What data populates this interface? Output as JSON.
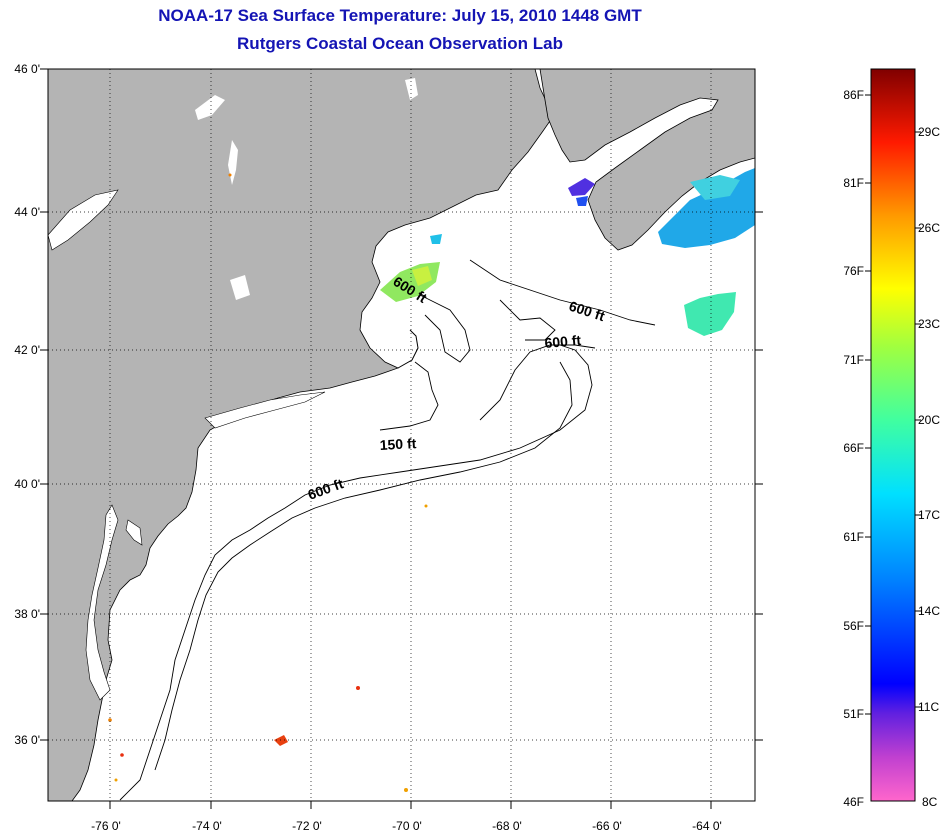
{
  "header": {
    "title_line1": "NOAA-17 Sea Surface Temperature:  July 15, 2010 1448 GMT",
    "title_line2": "Rutgers Coastal Ocean Observation Lab"
  },
  "map": {
    "lon_range": [
      -77,
      -63
    ],
    "lat_range": [
      35,
      46
    ],
    "lon_ticks": [
      {
        "value": -76,
        "label": "-76 0'"
      },
      {
        "value": -74,
        "label": "-74 0'"
      },
      {
        "value": -72,
        "label": "-72 0'"
      },
      {
        "value": -70,
        "label": "-70 0'"
      },
      {
        "value": -68,
        "label": "-68 0'"
      },
      {
        "value": -66,
        "label": "-66 0'"
      },
      {
        "value": -64,
        "label": "-64 0'"
      }
    ],
    "lat_ticks": [
      {
        "value": 46,
        "label": "46 0'"
      },
      {
        "value": 44,
        "label": "44 0'"
      },
      {
        "value": 42,
        "label": "42 0'"
      },
      {
        "value": 40,
        "label": "40 0'"
      },
      {
        "value": 38,
        "label": "38 0'"
      },
      {
        "value": 36,
        "label": "36 0'"
      }
    ],
    "depth_labels": [
      "600 ft",
      "600 ft",
      "600 ft",
      "150 ft",
      "600 ft"
    ],
    "land_color": "#b4b4b4",
    "ocean_color": "#ffffff"
  },
  "colorbar": {
    "fahrenheit_labels": [
      "86F",
      "81F",
      "76F",
      "71F",
      "66F",
      "61F",
      "56F",
      "51F",
      "46F"
    ],
    "celsius_labels": [
      "29C",
      "26C",
      "23C",
      "20C",
      "17C",
      "14C",
      "11C",
      "8C"
    ]
  }
}
